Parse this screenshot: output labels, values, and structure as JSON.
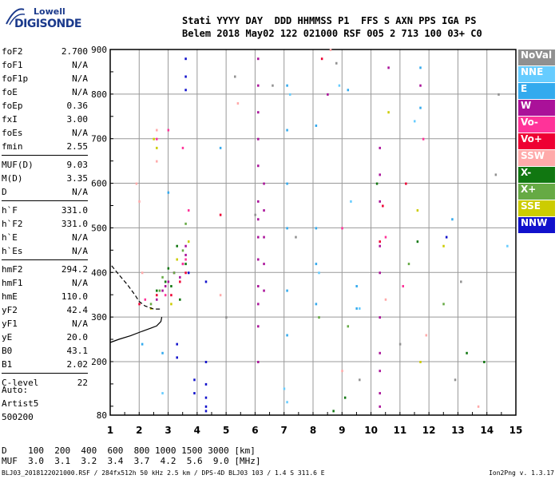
{
  "logo": {
    "line1": "Lowell",
    "line2": "DIGISONDE"
  },
  "header": {
    "line1": "Stati YYYY DAY  DDD HHMMSS P1  FFS S AXN PPS IGA PS",
    "line2": "Belem 2018 May02 122 021000 RSF 005 2 713 100 03+ C0"
  },
  "params": [
    [
      {
        "k": "foF2",
        "v": "2.700"
      },
      {
        "k": "foF1",
        "v": "N/A"
      },
      {
        "k": "foF1p",
        "v": "N/A"
      },
      {
        "k": "foE",
        "v": "N/A"
      },
      {
        "k": "foEp",
        "v": "0.36"
      },
      {
        "k": "fxI",
        "v": "3.00"
      },
      {
        "k": "foEs",
        "v": "N/A"
      },
      {
        "k": "fmin",
        "v": "2.55"
      }
    ],
    [
      {
        "k": "MUF(D)",
        "v": "9.03"
      },
      {
        "k": "M(D)",
        "v": "3.35"
      },
      {
        "k": "D",
        "v": "N/A"
      }
    ],
    [
      {
        "k": "h`F",
        "v": "331.0"
      },
      {
        "k": "h`F2",
        "v": "331.0"
      },
      {
        "k": "h`E",
        "v": "N/A"
      },
      {
        "k": "h`Es",
        "v": "N/A"
      }
    ],
    [
      {
        "k": "hmF2",
        "v": "294.2"
      },
      {
        "k": "hmF1",
        "v": "N/A"
      },
      {
        "k": "hmE",
        "v": "110.0"
      },
      {
        "k": "yF2",
        "v": "42.4"
      },
      {
        "k": "yF1",
        "v": "N/A"
      },
      {
        "k": "yE",
        "v": "20.0"
      },
      {
        "k": "B0",
        "v": "43.1"
      },
      {
        "k": "B1",
        "v": "2.02"
      }
    ],
    [
      {
        "k": "C-level",
        "v": "22"
      }
    ]
  ],
  "auto": {
    "l1": "Auto:",
    "l2": "Artist5",
    "l3": "500200"
  },
  "dmuf": {
    "dline": "D    100  200  400  600  800 1000 1500 3000 [km]",
    "mline": "MUF  3.0  3.1  3.2  3.4  3.7  4.2  5.6  9.0 [MHz]"
  },
  "footer": {
    "left": "BLJ03_2018122021000.RSF / 284fx512h 50 kHz 2.5 km / DPS-4D BLJ03 103 / 1.4 S 311.6 E",
    "right": "Ion2Png v. 1.3.17"
  },
  "legend": [
    {
      "label": "NoVal",
      "color": "#909090"
    },
    {
      "label": "NNE",
      "color": "#66ccff"
    },
    {
      "label": "E",
      "color": "#33aaee"
    },
    {
      "label": "W",
      "color": "#aa1199"
    },
    {
      "label": "Vo-",
      "color": "#ff3399"
    },
    {
      "label": "Vo+",
      "color": "#ee0033"
    },
    {
      "label": "SSW",
      "color": "#ffaaaa"
    },
    {
      "label": "X-",
      "color": "#117711"
    },
    {
      "label": "X+",
      "color": "#66aa44"
    },
    {
      "label": "SSE",
      "color": "#cccc00"
    },
    {
      "label": "NNW",
      "color": "#1111cc"
    }
  ],
  "chart_data": {
    "type": "scatter",
    "xlim": [
      1,
      15
    ],
    "ylim": [
      80,
      900
    ],
    "x_ticks": [
      1,
      2,
      3,
      4,
      5,
      6,
      7,
      8,
      9,
      10,
      11,
      12,
      13,
      14,
      15
    ],
    "y_ticks": [
      80,
      200,
      300,
      400,
      500,
      600,
      700,
      800,
      900
    ],
    "grid": true,
    "series": [
      {
        "color": "#aa1199",
        "points": [
          [
            6.1,
            880
          ],
          [
            6.1,
            820
          ],
          [
            6.1,
            760
          ],
          [
            6.1,
            700
          ],
          [
            6.1,
            640
          ],
          [
            6.1,
            560
          ],
          [
            6.1,
            520
          ],
          [
            6.1,
            480
          ],
          [
            6.1,
            430
          ],
          [
            6.1,
            370
          ],
          [
            6.1,
            330
          ],
          [
            6.1,
            280
          ],
          [
            6.1,
            200
          ],
          [
            6.3,
            600
          ],
          [
            6.3,
            540
          ],
          [
            6.3,
            480
          ],
          [
            6.3,
            420
          ],
          [
            6.3,
            360
          ],
          [
            10.3,
            680
          ],
          [
            10.3,
            620
          ],
          [
            10.3,
            560
          ],
          [
            10.3,
            460
          ],
          [
            10.3,
            400
          ],
          [
            10.3,
            300
          ],
          [
            10.3,
            220
          ],
          [
            10.3,
            180
          ],
          [
            10.3,
            130
          ],
          [
            10.3,
            100
          ],
          [
            10.6,
            860
          ],
          [
            8.5,
            800
          ],
          [
            11.7,
            820
          ],
          [
            2.8,
            360
          ],
          [
            3.0,
            380
          ],
          [
            3.2,
            400
          ],
          [
            3.5,
            420
          ],
          [
            3.6,
            460
          ],
          [
            2.6,
            340
          ],
          [
            2.9,
            370
          ],
          [
            3.4,
            390
          ],
          [
            3.6,
            440
          ]
        ]
      },
      {
        "color": "#1111cc",
        "points": [
          [
            3.6,
            880
          ],
          [
            3.6,
            840
          ],
          [
            3.6,
            810
          ],
          [
            3.3,
            240
          ],
          [
            3.3,
            210
          ],
          [
            4.3,
            380
          ],
          [
            4.3,
            200
          ],
          [
            4.3,
            150
          ],
          [
            4.3,
            120
          ],
          [
            4.3,
            100
          ],
          [
            4.3,
            90
          ],
          [
            3.9,
            160
          ],
          [
            3.9,
            130
          ],
          [
            3.7,
            400
          ],
          [
            12.6,
            480
          ]
        ]
      },
      {
        "color": "#33aaee",
        "points": [
          [
            7.1,
            820
          ],
          [
            7.1,
            720
          ],
          [
            7.1,
            600
          ],
          [
            7.1,
            500
          ],
          [
            7.1,
            360
          ],
          [
            7.1,
            260
          ],
          [
            8.1,
            730
          ],
          [
            8.1,
            500
          ],
          [
            8.1,
            420
          ],
          [
            8.1,
            330
          ],
          [
            9.5,
            370
          ],
          [
            9.5,
            320
          ],
          [
            11.7,
            860
          ],
          [
            11.7,
            770
          ],
          [
            9.2,
            810
          ],
          [
            12.8,
            520
          ],
          [
            2.8,
            220
          ],
          [
            3.0,
            580
          ],
          [
            4.8,
            680
          ],
          [
            2.1,
            240
          ]
        ]
      },
      {
        "color": "#66ccff",
        "points": [
          [
            7.2,
            800
          ],
          [
            8.9,
            820
          ],
          [
            9.3,
            560
          ],
          [
            9.6,
            320
          ],
          [
            11.5,
            740
          ],
          [
            14.7,
            460
          ],
          [
            7.0,
            140
          ],
          [
            7.1,
            110
          ],
          [
            2.8,
            130
          ],
          [
            8.2,
            400
          ]
        ]
      },
      {
        "color": "#ff3399",
        "points": [
          [
            2.6,
            700
          ],
          [
            3.0,
            720
          ],
          [
            3.5,
            680
          ],
          [
            3.7,
            540
          ],
          [
            3.5,
            420
          ],
          [
            3.6,
            430
          ],
          [
            2.9,
            350
          ],
          [
            10.5,
            480
          ],
          [
            11.1,
            370
          ],
          [
            11.8,
            700
          ],
          [
            9.0,
            500
          ],
          [
            2.2,
            340
          ]
        ]
      },
      {
        "color": "#ee0033",
        "points": [
          [
            3.6,
            400
          ],
          [
            3.4,
            380
          ],
          [
            3.1,
            350
          ],
          [
            2.6,
            350
          ],
          [
            10.3,
            470
          ],
          [
            10.4,
            550
          ],
          [
            11.2,
            600
          ],
          [
            8.3,
            880
          ],
          [
            2.0,
            330
          ],
          [
            4.8,
            530
          ]
        ]
      },
      {
        "color": "#ffaaaa",
        "points": [
          [
            1.9,
            600
          ],
          [
            2.0,
            560
          ],
          [
            2.6,
            650
          ],
          [
            2.6,
            720
          ],
          [
            4.8,
            350
          ],
          [
            8.6,
            900
          ],
          [
            9.0,
            180
          ],
          [
            10.5,
            340
          ],
          [
            11.9,
            260
          ],
          [
            13.7,
            100
          ],
          [
            2.1,
            400
          ],
          [
            5.4,
            780
          ]
        ]
      },
      {
        "color": "#117711",
        "points": [
          [
            2.6,
            360
          ],
          [
            3.1,
            370
          ],
          [
            3.4,
            340
          ],
          [
            3.6,
            420
          ],
          [
            2.9,
            380
          ],
          [
            8.7,
            90
          ],
          [
            9.1,
            120
          ],
          [
            10.2,
            600
          ],
          [
            13.3,
            220
          ],
          [
            13.9,
            200
          ],
          [
            11.6,
            470
          ],
          [
            3.0,
            410
          ],
          [
            3.3,
            460
          ]
        ]
      },
      {
        "color": "#66aa44",
        "points": [
          [
            2.4,
            330
          ],
          [
            2.7,
            360
          ],
          [
            3.2,
            400
          ],
          [
            3.5,
            450
          ],
          [
            8.2,
            300
          ],
          [
            9.2,
            280
          ],
          [
            11.3,
            420
          ],
          [
            12.5,
            330
          ],
          [
            2.8,
            390
          ],
          [
            3.6,
            510
          ]
        ]
      },
      {
        "color": "#cccc00",
        "points": [
          [
            2.5,
            700
          ],
          [
            2.6,
            680
          ],
          [
            3.1,
            330
          ],
          [
            3.7,
            470
          ],
          [
            10.6,
            760
          ],
          [
            11.6,
            540
          ],
          [
            12.5,
            460
          ],
          [
            11.7,
            200
          ],
          [
            2.4,
            320
          ],
          [
            3.3,
            430
          ]
        ]
      },
      {
        "color": "#909090",
        "points": [
          [
            5.3,
            840
          ],
          [
            6.0,
            530
          ],
          [
            7.4,
            480
          ],
          [
            8.8,
            870
          ],
          [
            9.6,
            160
          ],
          [
            11.0,
            240
          ],
          [
            13.1,
            380
          ],
          [
            14.3,
            620
          ],
          [
            14.4,
            800
          ],
          [
            6.6,
            820
          ],
          [
            5.0,
            300
          ],
          [
            12.9,
            160
          ]
        ]
      }
    ],
    "curves": [
      {
        "style": "solid",
        "points": [
          [
            1,
            243
          ],
          [
            1.3,
            250
          ],
          [
            1.7,
            258
          ],
          [
            2.1,
            268
          ],
          [
            2.4,
            275
          ],
          [
            2.6,
            280
          ],
          [
            2.75,
            290
          ],
          [
            2.78,
            300
          ]
        ]
      },
      {
        "style": "dashed",
        "points": [
          [
            1.05,
            415
          ],
          [
            1.3,
            395
          ],
          [
            1.6,
            372
          ],
          [
            1.85,
            350
          ],
          [
            2.0,
            335
          ],
          [
            2.2,
            325
          ],
          [
            2.5,
            318
          ],
          [
            2.75,
            318
          ]
        ]
      }
    ]
  }
}
